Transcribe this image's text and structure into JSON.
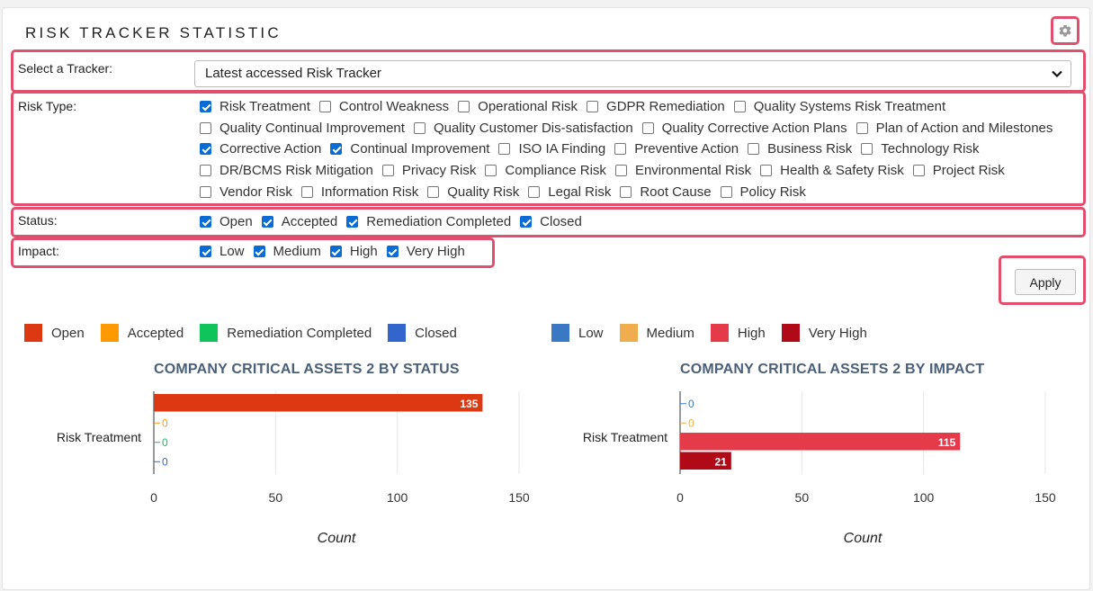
{
  "title": "RISK TRACKER STATISTIC",
  "settings_icon": "gear-icon",
  "tracker": {
    "label": "Select a Tracker:",
    "selected": "Latest accessed Risk Tracker"
  },
  "risk_type": {
    "label": "Risk Type:",
    "rows": [
      [
        {
          "label": "Risk Treatment",
          "checked": true
        },
        {
          "label": "Control Weakness",
          "checked": false
        },
        {
          "label": "Operational Risk",
          "checked": false
        },
        {
          "label": "GDPR Remediation",
          "checked": false
        },
        {
          "label": "Quality Systems Risk Treatment",
          "checked": false
        }
      ],
      [
        {
          "label": "Quality Continual Improvement",
          "checked": false
        },
        {
          "label": "Quality Customer Dis-satisfaction",
          "checked": false
        },
        {
          "label": "Quality Corrective Action Plans",
          "checked": false
        },
        {
          "label": "Plan of Action and Milestones",
          "checked": false
        }
      ],
      [
        {
          "label": "Corrective Action",
          "checked": true
        },
        {
          "label": "Continual Improvement",
          "checked": true
        },
        {
          "label": "ISO IA Finding",
          "checked": false
        },
        {
          "label": "Preventive Action",
          "checked": false
        },
        {
          "label": "Business Risk",
          "checked": false
        },
        {
          "label": "Technology Risk",
          "checked": false
        }
      ],
      [
        {
          "label": "DR/BCMS Risk Mitigation",
          "checked": false
        },
        {
          "label": "Privacy Risk",
          "checked": false
        },
        {
          "label": "Compliance Risk",
          "checked": false
        },
        {
          "label": "Environmental Risk",
          "checked": false
        },
        {
          "label": "Health & Safety Risk",
          "checked": false
        },
        {
          "label": "Project Risk",
          "checked": false
        }
      ],
      [
        {
          "label": "Vendor Risk",
          "checked": false
        },
        {
          "label": "Information Risk",
          "checked": false
        },
        {
          "label": "Quality Risk",
          "checked": false
        },
        {
          "label": "Legal Risk",
          "checked": false
        },
        {
          "label": "Root Cause",
          "checked": false
        },
        {
          "label": "Policy Risk",
          "checked": false
        }
      ]
    ]
  },
  "status": {
    "label": "Status:",
    "options": [
      {
        "label": "Open",
        "checked": true
      },
      {
        "label": "Accepted",
        "checked": true
      },
      {
        "label": "Remediation Completed",
        "checked": true
      },
      {
        "label": "Closed",
        "checked": true
      }
    ]
  },
  "impact": {
    "label": "Impact:",
    "options": [
      {
        "label": "Low",
        "checked": true
      },
      {
        "label": "Medium",
        "checked": true
      },
      {
        "label": "High",
        "checked": true
      },
      {
        "label": "Very High",
        "checked": true
      }
    ]
  },
  "apply_label": "Apply",
  "status_legend": [
    {
      "label": "Open",
      "color": "#dc3912"
    },
    {
      "label": "Accepted",
      "color": "#ff9900"
    },
    {
      "label": "Remediation Completed",
      "color": "#10c45c"
    },
    {
      "label": "Closed",
      "color": "#3366cc"
    }
  ],
  "impact_legend": [
    {
      "label": "Low",
      "color": "#3a78c4"
    },
    {
      "label": "Medium",
      "color": "#f0ad4e"
    },
    {
      "label": "High",
      "color": "#e43a4a"
    },
    {
      "label": "Very High",
      "color": "#b00a18"
    }
  ],
  "chart_data": [
    {
      "type": "bar",
      "orientation": "horizontal",
      "title": "COMPANY CRITICAL ASSETS 2 BY STATUS",
      "categories": [
        "Risk Treatment"
      ],
      "series": [
        {
          "name": "Open",
          "values": [
            135
          ],
          "color": "#dc3912"
        },
        {
          "name": "Accepted",
          "values": [
            0
          ],
          "color": "#ff9900"
        },
        {
          "name": "Remediation Completed",
          "values": [
            0
          ],
          "color": "#10c45c"
        },
        {
          "name": "Closed",
          "values": [
            0
          ],
          "color": "#3366cc"
        }
      ],
      "xlabel": "Count",
      "xlim": [
        0,
        150
      ],
      "xticks": [
        0,
        50,
        100,
        150
      ],
      "grid": true
    },
    {
      "type": "bar",
      "orientation": "horizontal",
      "title": "COMPANY CRITICAL ASSETS 2 BY IMPACT",
      "categories": [
        "Risk Treatment"
      ],
      "series": [
        {
          "name": "Low",
          "values": [
            0
          ],
          "color": "#3a78c4"
        },
        {
          "name": "Medium",
          "values": [
            0
          ],
          "color": "#f0ad4e"
        },
        {
          "name": "High",
          "values": [
            115
          ],
          "color": "#e43a4a"
        },
        {
          "name": "Very High",
          "values": [
            21
          ],
          "color": "#b00a18"
        }
      ],
      "xlabel": "Count",
      "xlim": [
        0,
        150
      ],
      "xticks": [
        0,
        50,
        100,
        150
      ],
      "grid": true
    }
  ]
}
